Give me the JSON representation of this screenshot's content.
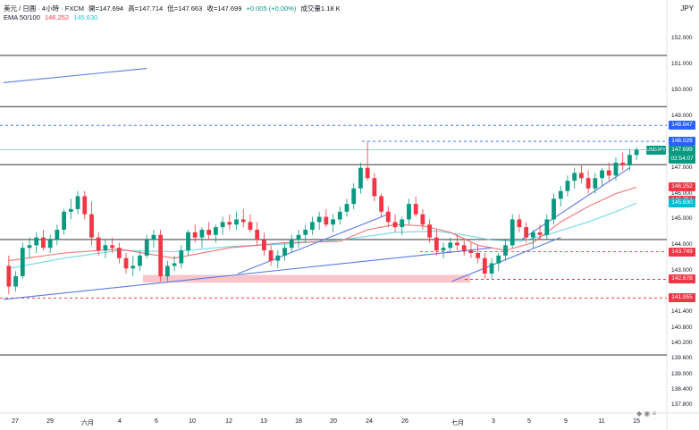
{
  "header": {
    "line1": {
      "symbol": "美元 / 日圓 · 4小時 · FXCM",
      "open": "開=147.694",
      "high": "高=147.714",
      "low": "低=147.663",
      "close": "收=147.699",
      "change": "+0.005 (+0.00%)",
      "volume": "成交量1.18 K"
    },
    "line2": {
      "label": "EMA 50/100",
      "ema50": "146.252",
      "ema100": "145.630"
    }
  },
  "currency": "JPY",
  "colors": {
    "up": "#089981",
    "down": "#f23645",
    "ema50": "#f05a5a",
    "ema100": "#4dd0e1",
    "trendline": "#5b7be0",
    "resistance": "#4a4a4a",
    "dashed_blue": "#2962ff",
    "dashed_red": "#f23645",
    "zone": "#f8bbc2"
  },
  "chart_data": {
    "type": "candlestick",
    "ylim": [
      137.5,
      152.6
    ],
    "price_ticks": [
      "152.000",
      "151.000",
      "150.000",
      "149.000",
      "148.000",
      "147.000",
      "146.000",
      "145.000",
      "144.000",
      "143.000",
      "142.000",
      "141.400",
      "140.800",
      "140.200",
      "139.600",
      "139.000",
      "138.400",
      "137.800"
    ],
    "x_ticks": [
      "27",
      "29",
      "六月",
      "4",
      "6",
      "10",
      "12",
      "13",
      "18",
      "20",
      "24",
      "26",
      "七月",
      "3",
      "5",
      "9",
      "11",
      "15"
    ],
    "symbol": "USDJPY",
    "countdown": "02:54:07",
    "price_labels": [
      {
        "value": "148.647",
        "kind": "blue"
      },
      {
        "value": "148.026",
        "kind": "blue"
      },
      {
        "value": "147.699",
        "kind": "green"
      },
      {
        "value": "146.252",
        "kind": "red"
      },
      {
        "value": "145.754",
        "kind": "red"
      },
      {
        "value": "145.630",
        "kind": "cyan"
      },
      {
        "value": "143.749",
        "kind": "red"
      },
      {
        "value": "142.678",
        "kind": "red"
      },
      {
        "value": "141.955",
        "kind": "red"
      }
    ],
    "horizontal_levels": [
      {
        "price": 151.35,
        "style": "solid",
        "color": "resistance"
      },
      {
        "price": 149.37,
        "style": "solid",
        "color": "resistance"
      },
      {
        "price": 148.647,
        "style": "dashed",
        "color": "dashed_blue"
      },
      {
        "price": 148.026,
        "style": "dashed",
        "color": "dashed_blue"
      },
      {
        "price": 147.12,
        "style": "solid",
        "color": "resistance"
      },
      {
        "price": 144.22,
        "style": "solid",
        "color": "resistance"
      },
      {
        "price": 143.749,
        "style": "dashed",
        "color": "dashed_red"
      },
      {
        "price": 142.678,
        "style": "dashed",
        "color": "dashed_red"
      },
      {
        "price": 141.955,
        "style": "dashed",
        "color": "dashed_red"
      },
      {
        "price": 139.75,
        "style": "solid",
        "color": "resistance"
      }
    ],
    "support_zone": [
      142.55,
      142.85
    ],
    "candles": [
      [
        143.2,
        143.6,
        142.1,
        142.4
      ],
      [
        142.4,
        143.0,
        142.2,
        142.8
      ],
      [
        142.8,
        144.1,
        142.7,
        143.9
      ],
      [
        143.9,
        144.3,
        143.5,
        144.0
      ],
      [
        144.0,
        144.5,
        143.7,
        144.3
      ],
      [
        144.3,
        144.6,
        143.8,
        143.9
      ],
      [
        143.9,
        144.4,
        143.7,
        144.2
      ],
      [
        144.2,
        144.8,
        144.0,
        144.6
      ],
      [
        144.6,
        145.4,
        144.4,
        145.3
      ],
      [
        145.3,
        145.8,
        145.0,
        145.4
      ],
      [
        145.4,
        146.1,
        145.2,
        145.9
      ],
      [
        145.9,
        146.1,
        145.0,
        145.2
      ],
      [
        145.2,
        145.7,
        144.0,
        144.3
      ],
      [
        144.3,
        144.5,
        143.6,
        143.8
      ],
      [
        143.8,
        144.2,
        143.5,
        144.0
      ],
      [
        144.0,
        144.3,
        143.7,
        143.9
      ],
      [
        143.9,
        144.1,
        143.3,
        143.5
      ],
      [
        143.5,
        143.7,
        142.9,
        143.1
      ],
      [
        143.1,
        143.6,
        142.8,
        143.2
      ],
      [
        143.2,
        143.8,
        143.0,
        143.6
      ],
      [
        143.6,
        144.4,
        143.5,
        144.2
      ],
      [
        144.2,
        144.6,
        143.9,
        144.4
      ],
      [
        144.4,
        144.6,
        142.6,
        142.8
      ],
      [
        142.8,
        143.4,
        142.6,
        143.2
      ],
      [
        143.2,
        143.6,
        143.0,
        143.3
      ],
      [
        143.3,
        144.0,
        143.1,
        143.8
      ],
      [
        143.8,
        144.6,
        143.6,
        144.5
      ],
      [
        144.5,
        144.8,
        144.1,
        144.3
      ],
      [
        144.3,
        144.7,
        143.9,
        144.6
      ],
      [
        144.6,
        144.9,
        144.2,
        144.4
      ],
      [
        144.4,
        144.8,
        144.1,
        144.7
      ],
      [
        144.7,
        145.1,
        144.4,
        144.9
      ],
      [
        144.9,
        145.2,
        144.6,
        144.8
      ],
      [
        144.8,
        145.3,
        144.6,
        145.0
      ],
      [
        145.0,
        145.4,
        144.7,
        144.9
      ],
      [
        144.9,
        145.2,
        144.5,
        144.6
      ],
      [
        144.6,
        144.9,
        144.0,
        144.2
      ],
      [
        144.2,
        144.5,
        143.6,
        143.8
      ],
      [
        143.8,
        144.0,
        143.2,
        143.4
      ],
      [
        143.4,
        143.8,
        143.1,
        143.6
      ],
      [
        143.6,
        144.1,
        143.4,
        143.9
      ],
      [
        143.9,
        144.4,
        143.7,
        144.2
      ],
      [
        144.2,
        144.6,
        143.9,
        144.4
      ],
      [
        144.4,
        144.8,
        144.1,
        144.6
      ],
      [
        144.6,
        145.1,
        144.4,
        144.9
      ],
      [
        144.9,
        145.3,
        144.6,
        145.1
      ],
      [
        145.1,
        145.4,
        144.7,
        144.8
      ],
      [
        144.8,
        145.2,
        144.5,
        145.0
      ],
      [
        145.0,
        145.5,
        144.8,
        145.3
      ],
      [
        145.3,
        145.8,
        145.1,
        145.6
      ],
      [
        145.6,
        146.4,
        145.4,
        146.2
      ],
      [
        146.2,
        147.2,
        146.0,
        147.0
      ],
      [
        147.0,
        148.0,
        146.5,
        146.6
      ],
      [
        146.6,
        146.8,
        145.7,
        145.9
      ],
      [
        145.9,
        146.0,
        145.1,
        145.3
      ],
      [
        145.3,
        145.5,
        144.7,
        144.9
      ],
      [
        144.9,
        145.2,
        144.5,
        144.7
      ],
      [
        144.7,
        145.1,
        144.4,
        145.0
      ],
      [
        145.0,
        145.8,
        144.8,
        145.6
      ],
      [
        145.6,
        145.9,
        145.1,
        145.2
      ],
      [
        145.2,
        145.4,
        144.6,
        144.8
      ],
      [
        144.8,
        145.0,
        144.1,
        144.3
      ],
      [
        144.3,
        144.6,
        143.6,
        143.8
      ],
      [
        143.8,
        144.1,
        143.5,
        143.9
      ],
      [
        143.9,
        144.3,
        143.7,
        144.1
      ],
      [
        144.1,
        144.4,
        143.8,
        144.0
      ],
      [
        144.0,
        144.2,
        143.6,
        143.8
      ],
      [
        143.8,
        144.1,
        143.5,
        143.7
      ],
      [
        143.7,
        144.0,
        143.3,
        143.5
      ],
      [
        143.5,
        143.7,
        142.7,
        142.9
      ],
      [
        142.9,
        143.5,
        142.7,
        143.3
      ],
      [
        143.3,
        143.7,
        143.0,
        143.6
      ],
      [
        143.6,
        144.2,
        143.4,
        144.0
      ],
      [
        144.0,
        145.2,
        143.9,
        145.0
      ],
      [
        145.0,
        145.2,
        144.5,
        144.7
      ],
      [
        144.7,
        144.9,
        144.1,
        144.3
      ],
      [
        144.3,
        144.6,
        143.9,
        144.5
      ],
      [
        144.5,
        144.8,
        144.2,
        144.4
      ],
      [
        144.4,
        145.2,
        144.2,
        145.0
      ],
      [
        145.0,
        146.0,
        144.8,
        145.8
      ],
      [
        145.8,
        146.3,
        145.5,
        146.1
      ],
      [
        146.1,
        146.7,
        145.9,
        146.5
      ],
      [
        146.5,
        147.0,
        146.2,
        146.8
      ],
      [
        146.8,
        147.1,
        146.4,
        146.6
      ],
      [
        146.6,
        146.9,
        146.0,
        146.2
      ],
      [
        146.2,
        146.8,
        146.0,
        146.6
      ],
      [
        146.6,
        147.0,
        146.3,
        146.9
      ],
      [
        146.9,
        147.2,
        146.5,
        146.7
      ],
      [
        146.7,
        147.4,
        146.5,
        147.2
      ],
      [
        147.2,
        147.6,
        146.9,
        147.1
      ],
      [
        147.1,
        147.7,
        146.9,
        147.5
      ],
      [
        147.5,
        147.8,
        147.3,
        147.7
      ]
    ],
    "ema50": [
      [
        0,
        143.4
      ],
      [
        8,
        143.7
      ],
      [
        16,
        143.85
      ],
      [
        24,
        143.5
      ],
      [
        32,
        143.9
      ],
      [
        40,
        144.1
      ],
      [
        48,
        144.15
      ],
      [
        52,
        144.6
      ],
      [
        56,
        144.8
      ],
      [
        60,
        144.75
      ],
      [
        64,
        144.5
      ],
      [
        68,
        144.0
      ],
      [
        72,
        143.8
      ],
      [
        76,
        144.1
      ],
      [
        80,
        144.9
      ],
      [
        84,
        145.5
      ],
      [
        88,
        146.0
      ],
      [
        91,
        146.25
      ]
    ],
    "ema100": [
      [
        0,
        143.1
      ],
      [
        8,
        143.5
      ],
      [
        16,
        143.8
      ],
      [
        24,
        143.75
      ],
      [
        32,
        143.95
      ],
      [
        40,
        144.05
      ],
      [
        48,
        144.2
      ],
      [
        56,
        144.5
      ],
      [
        62,
        144.55
      ],
      [
        66,
        144.4
      ],
      [
        70,
        144.2
      ],
      [
        74,
        144.15
      ],
      [
        78,
        144.4
      ],
      [
        84,
        144.9
      ],
      [
        88,
        145.3
      ],
      [
        91,
        145.63
      ]
    ],
    "trendlines": [
      {
        "from": [
          0,
          150.3
        ],
        "to": [
          20,
          150.85
        ]
      },
      {
        "from": [
          0,
          141.9
        ],
        "to": [
          70,
          143.9
        ]
      },
      {
        "from": [
          34,
          142.9
        ],
        "to": [
          55,
          145.2
        ]
      },
      {
        "from": [
          65,
          142.6
        ],
        "to": [
          80,
          144.3
        ]
      },
      {
        "from": [
          75,
          144.2
        ],
        "to": [
          90,
          147.0
        ]
      }
    ]
  }
}
